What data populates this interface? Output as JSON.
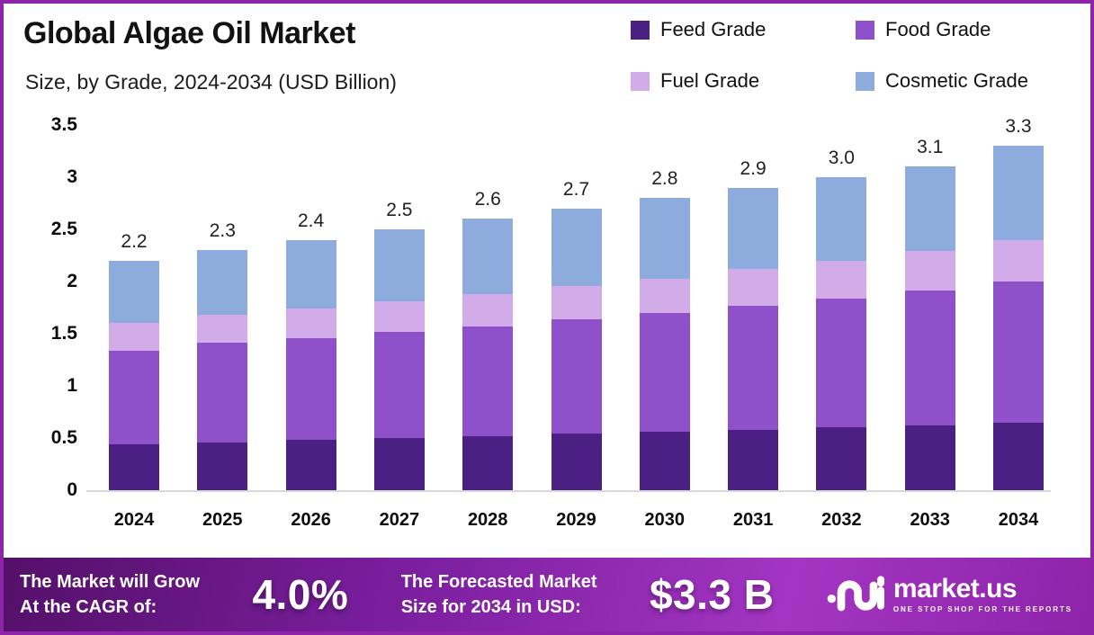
{
  "header": {
    "title": "Global Algae Oil Market",
    "subtitle": "Size, by Grade, 2024-2034 (USD Billion)"
  },
  "legend": {
    "items": [
      {
        "label": "Feed Grade",
        "color": "#4a2083"
      },
      {
        "label": "Food Grade",
        "color": "#8f51c9"
      },
      {
        "label": "Fuel Grade",
        "color": "#d2ace8"
      },
      {
        "label": "Cosmetic Grade",
        "color": "#8dabdc"
      }
    ]
  },
  "chart_data": {
    "type": "bar",
    "stacked": true,
    "title": "Global Algae Oil Market",
    "subtitle": "Size, by Grade, 2024-2034 (USD Billion)",
    "xlabel": "",
    "ylabel": "",
    "ylim": [
      0,
      3.5
    ],
    "grid": false,
    "legend_position": "top-right",
    "categories": [
      "2024",
      "2025",
      "2026",
      "2027",
      "2028",
      "2029",
      "2030",
      "2031",
      "2032",
      "2033",
      "2034"
    ],
    "series": [
      {
        "name": "Feed Grade",
        "color": "#4a2083",
        "values": [
          0.44,
          0.46,
          0.48,
          0.5,
          0.52,
          0.54,
          0.56,
          0.58,
          0.6,
          0.62,
          0.65
        ]
      },
      {
        "name": "Food Grade",
        "color": "#8f51c9",
        "values": [
          0.9,
          0.95,
          0.98,
          1.02,
          1.05,
          1.1,
          1.14,
          1.19,
          1.24,
          1.29,
          1.35
        ]
      },
      {
        "name": "Fuel Grade",
        "color": "#d2ace8",
        "values": [
          0.26,
          0.27,
          0.28,
          0.29,
          0.31,
          0.32,
          0.33,
          0.35,
          0.36,
          0.38,
          0.4
        ]
      },
      {
        "name": "Cosmetic Grade",
        "color": "#8dabdc",
        "values": [
          0.6,
          0.62,
          0.66,
          0.69,
          0.72,
          0.74,
          0.77,
          0.78,
          0.8,
          0.81,
          0.9
        ]
      }
    ],
    "totals": [
      2.2,
      2.3,
      2.4,
      2.5,
      2.6,
      2.7,
      2.8,
      2.9,
      3.0,
      3.1,
      3.3
    ],
    "total_labels": [
      "2.2",
      "2.3",
      "2.4",
      "2.5",
      "2.6",
      "2.7",
      "2.8",
      "2.9",
      "3.0",
      "3.1",
      "3.3"
    ],
    "ytick_labels": [
      "0",
      "0.5",
      "1",
      "1.5",
      "2",
      "2.5",
      "3",
      "3.5"
    ],
    "yticks": [
      0,
      0.5,
      1,
      1.5,
      2,
      2.5,
      3,
      3.5
    ]
  },
  "footer": {
    "cagr_line1": "The Market will Grow",
    "cagr_line2": "At the CAGR of:",
    "cagr_value": "4.0%",
    "forecast_line1": "The Forecasted Market",
    "forecast_line2": "Size for 2034 in USD:",
    "forecast_value": "$3.3 B",
    "brand": {
      "name": "market.us",
      "tagline": "ONE STOP SHOP FOR THE REPORTS"
    }
  }
}
